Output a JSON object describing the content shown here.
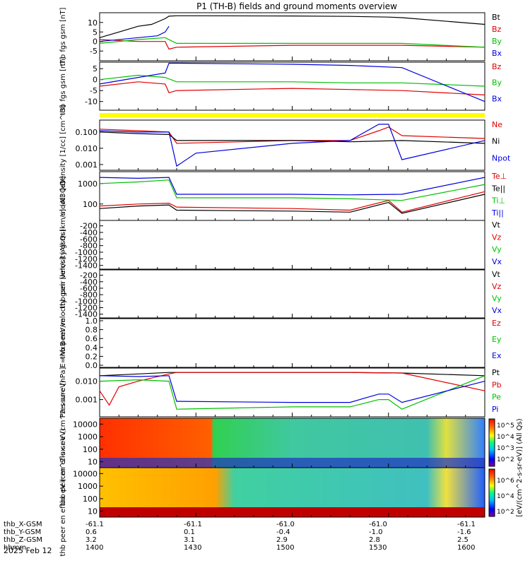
{
  "title": "P1 (TH-B) fields and ground moments overview",
  "footer_date": "2025 Feb 12",
  "colors": {
    "black": "#000000",
    "red": "#e00000",
    "green": "#00c000",
    "blue": "#0000e0",
    "yellow": "#ffff00"
  },
  "ephemeris": {
    "labels": [
      "thb_X-GSM",
      "thb_Y-GSM",
      "thb_Z-GSM",
      "hhmm"
    ],
    "rows": [
      [
        "-61.1",
        "-61.1",
        "-61.0",
        "-61.0",
        "-61.1"
      ],
      [
        "0.6",
        "0.1",
        "-0.4",
        "-1.0",
        "-1.6"
      ],
      [
        "3.2",
        "3.1",
        "2.9",
        "2.8",
        "2.5"
      ],
      [
        "1400",
        "1430",
        "1500",
        "1530",
        "1600"
      ]
    ]
  },
  "colorbar": {
    "label": "[eV/(cm^2-s-sr-eV)] (All Qs)",
    "ion_ticks": [
      "10^5",
      "10^4",
      "10^3",
      "10^2"
    ],
    "electron_ticks": [
      "10^6",
      "10^4",
      "10^2"
    ]
  },
  "chart_data": [
    {
      "type": "line",
      "ylabel": "thb fgs gsm [nT]",
      "yticks": [
        "10",
        "5",
        "0",
        "-5"
      ],
      "ylim": [
        -9,
        14
      ],
      "legend": [
        "Bt",
        "Bz",
        "By",
        "Bx"
      ],
      "series": [
        {
          "name": "Bt",
          "color": "#000000",
          "x": [
            1400,
            1410,
            1420,
            1427,
            1434,
            1436,
            1440,
            1500,
            1530,
            1550,
            1557,
            1600
          ],
          "values": [
            2,
            5,
            8,
            9,
            12,
            13.3,
            13.5,
            13.4,
            13.2,
            12.8,
            12.5,
            9
          ]
        },
        {
          "name": "Bz",
          "color": "#e00000",
          "x": [
            1400,
            1420,
            1434,
            1436,
            1440,
            1500,
            1530,
            1557,
            1600
          ],
          "values": [
            1,
            0,
            0,
            -4,
            -3,
            -2,
            -2,
            -2,
            -3
          ]
        },
        {
          "name": "By",
          "color": "#00c000",
          "x": [
            1400,
            1420,
            1434,
            1440,
            1500,
            1530,
            1557,
            1600
          ],
          "values": [
            -1,
            1,
            2,
            -1,
            -1,
            -1,
            -1,
            -3
          ]
        },
        {
          "name": "Bx",
          "color": "#0000e0",
          "x": [
            1400,
            1420,
            1430,
            1434,
            1436
          ],
          "values": [
            0,
            2,
            3,
            5,
            8
          ]
        }
      ]
    },
    {
      "type": "line",
      "ylabel": "thb fgs gsm [nT]",
      "yticks": [
        "5",
        "0",
        "-5",
        "-10"
      ],
      "ylim": [
        -13,
        7
      ],
      "legend": [
        "Bz",
        "By",
        "Bx"
      ],
      "series": [
        {
          "name": "Bz",
          "color": "#e00000",
          "x": [
            1400,
            1420,
            1434,
            1436,
            1440,
            1500,
            1530,
            1557,
            1600
          ],
          "values": [
            -3,
            -1,
            -2,
            -6,
            -5,
            -4,
            -4.5,
            -5,
            -7
          ]
        },
        {
          "name": "By",
          "color": "#00c000",
          "x": [
            1400,
            1420,
            1434,
            1440,
            1500,
            1530,
            1557,
            1600
          ],
          "values": [
            0,
            2,
            1,
            -1,
            -1,
            -1.5,
            -1.5,
            -3
          ]
        },
        {
          "name": "Bx",
          "color": "#0000e0",
          "x": [
            1400,
            1420,
            1434,
            1436,
            1440,
            1500,
            1530,
            1557,
            1600
          ],
          "values": [
            -2,
            1,
            3,
            7.5,
            7.5,
            7,
            6.5,
            5.5,
            -10
          ]
        }
      ]
    },
    {
      "type": "line",
      "ylabel": "Density [1/cc] [cm^-3]",
      "yticks": [
        "0.100",
        "0.010",
        "0.001"
      ],
      "ylim": [
        0.0006,
        0.4
      ],
      "log": true,
      "legend": [
        "Ne",
        "Ni",
        "Npot"
      ],
      "series": [
        {
          "name": "Ne",
          "color": "#e00000",
          "x": [
            1400,
            1420,
            1436,
            1440,
            1500,
            1530,
            1545,
            1550,
            1557,
            1600
          ],
          "values": [
            0.15,
            0.12,
            0.1,
            0.02,
            0.03,
            0.03,
            0.12,
            0.2,
            0.06,
            0.04
          ]
        },
        {
          "name": "Ni",
          "color": "#000000",
          "x": [
            1400,
            1420,
            1436,
            1440,
            1500,
            1530,
            1557,
            1600
          ],
          "values": [
            0.1,
            0.08,
            0.07,
            0.03,
            0.03,
            0.025,
            0.03,
            0.02
          ]
        },
        {
          "name": "Npot",
          "color": "#0000e0",
          "x": [
            1400,
            1420,
            1436,
            1440,
            1450,
            1500,
            1530,
            1545,
            1550,
            1557,
            1600
          ],
          "values": [
            0.12,
            0.1,
            0.1,
            0.0008,
            0.005,
            0.02,
            0.03,
            0.3,
            0.3,
            0.002,
            0.03
          ]
        }
      ]
    },
    {
      "type": "line",
      "ylabel": "moot3 [eV]",
      "yticks": [
        "1000",
        "100"
      ],
      "ylim": [
        20,
        3000
      ],
      "log": true,
      "legend": [
        "Te⊥",
        "Te||",
        "Ti⊥",
        "Ti||"
      ],
      "series": [
        {
          "name": "Te⊥",
          "color": "#e00000",
          "x": [
            1400,
            1420,
            1436,
            1440,
            1500,
            1530,
            1550,
            1557,
            1600
          ],
          "values": [
            80,
            100,
            110,
            70,
            60,
            50,
            150,
            40,
            400
          ]
        },
        {
          "name": "Te||",
          "color": "#000000",
          "x": [
            1400,
            1420,
            1436,
            1440,
            1500,
            1530,
            1550,
            1557,
            1600
          ],
          "values": [
            60,
            80,
            90,
            50,
            45,
            40,
            120,
            35,
            300
          ]
        },
        {
          "name": "Ti⊥",
          "color": "#00c000",
          "x": [
            1400,
            1420,
            1436,
            1440,
            1500,
            1530,
            1557,
            1600
          ],
          "values": [
            1000,
            1200,
            1500,
            200,
            200,
            180,
            150,
            900
          ]
        },
        {
          "name": "Ti||",
          "color": "#0000e0",
          "x": [
            1400,
            1420,
            1436,
            1440,
            1500,
            1530,
            1557,
            1600
          ],
          "values": [
            2000,
            1800,
            2000,
            300,
            300,
            280,
            300,
            2000
          ]
        }
      ]
    },
    {
      "type": "line",
      "ylabel": "thb peir velocity gsm [km/s] (All Qs)",
      "yticks": [
        "-200",
        "-400",
        "-600",
        "-800",
        "-1000",
        "-1200",
        "-1400"
      ],
      "ylim": [
        -1450,
        -100
      ],
      "legend": [
        "Vt",
        "Vz",
        "Vy",
        "Vx"
      ],
      "series": []
    },
    {
      "type": "line",
      "ylabel": "thb peer velocity gsm [km/s] (All Qs)",
      "yticks": [
        "-200",
        "-400",
        "-600",
        "-800",
        "-1000",
        "-1200",
        "-1400"
      ],
      "ylim": [
        -1450,
        -100
      ],
      "legend": [
        "Vt",
        "Vz",
        "Vy",
        "Vx"
      ],
      "series": []
    },
    {
      "type": "line",
      "ylabel": "E=-VxB mV/m",
      "yticks": [
        "1.0",
        "0.8",
        "0.6",
        "0.4",
        "0.2",
        "0.0"
      ],
      "ylim": [
        0,
        1
      ],
      "legend": [
        "Ez",
        "Ey",
        "Ex"
      ],
      "series": []
    },
    {
      "type": "line",
      "ylabel": "Pressure [nPa]",
      "yticks": [
        "0.010",
        "0.001"
      ],
      "ylim": [
        0.00015,
        0.04
      ],
      "log": true,
      "legend": [
        "Pt",
        "Pb",
        "Pe",
        "Pi"
      ],
      "series": [
        {
          "name": "Pt",
          "color": "#000000",
          "x": [
            1400,
            1420,
            1436,
            1440,
            1500,
            1530,
            1557,
            1600
          ],
          "values": [
            0.02,
            0.025,
            0.03,
            0.03,
            0.03,
            0.03,
            0.028,
            0.02
          ]
        },
        {
          "name": "Pb",
          "color": "#e00000",
          "x": [
            1400,
            1405,
            1410,
            1420,
            1436,
            1440,
            1500,
            1530,
            1557,
            1600
          ],
          "values": [
            0.003,
            0.0005,
            0.005,
            0.01,
            0.025,
            0.03,
            0.03,
            0.03,
            0.028,
            0.003
          ]
        },
        {
          "name": "Pe",
          "color": "#00c000",
          "x": [
            1400,
            1420,
            1436,
            1440,
            1500,
            1530,
            1545,
            1550,
            1557,
            1600
          ],
          "values": [
            0.01,
            0.012,
            0.01,
            0.0003,
            0.0004,
            0.0004,
            0.001,
            0.001,
            0.0003,
            0.02
          ]
        },
        {
          "name": "Pi",
          "color": "#0000e0",
          "x": [
            1400,
            1420,
            1436,
            1440,
            1500,
            1530,
            1545,
            1550,
            1557,
            1600
          ],
          "values": [
            0.02,
            0.018,
            0.02,
            0.0008,
            0.0007,
            0.0007,
            0.002,
            0.002,
            0.0007,
            0.01
          ]
        }
      ]
    },
    {
      "type": "heatmap",
      "ylabel": "thb peir en eflux eV (cm^2-s-sr-eV)",
      "yticks": [
        "10000",
        "1000",
        "100",
        "10"
      ],
      "ylim": [
        5,
        20000
      ]
    },
    {
      "type": "heatmap",
      "ylabel": "thb peer en eflux eV (cm^2-s-sr-eV)",
      "yticks": [
        "10000",
        "1000",
        "100",
        "10"
      ],
      "ylim": [
        5,
        20000
      ]
    }
  ]
}
